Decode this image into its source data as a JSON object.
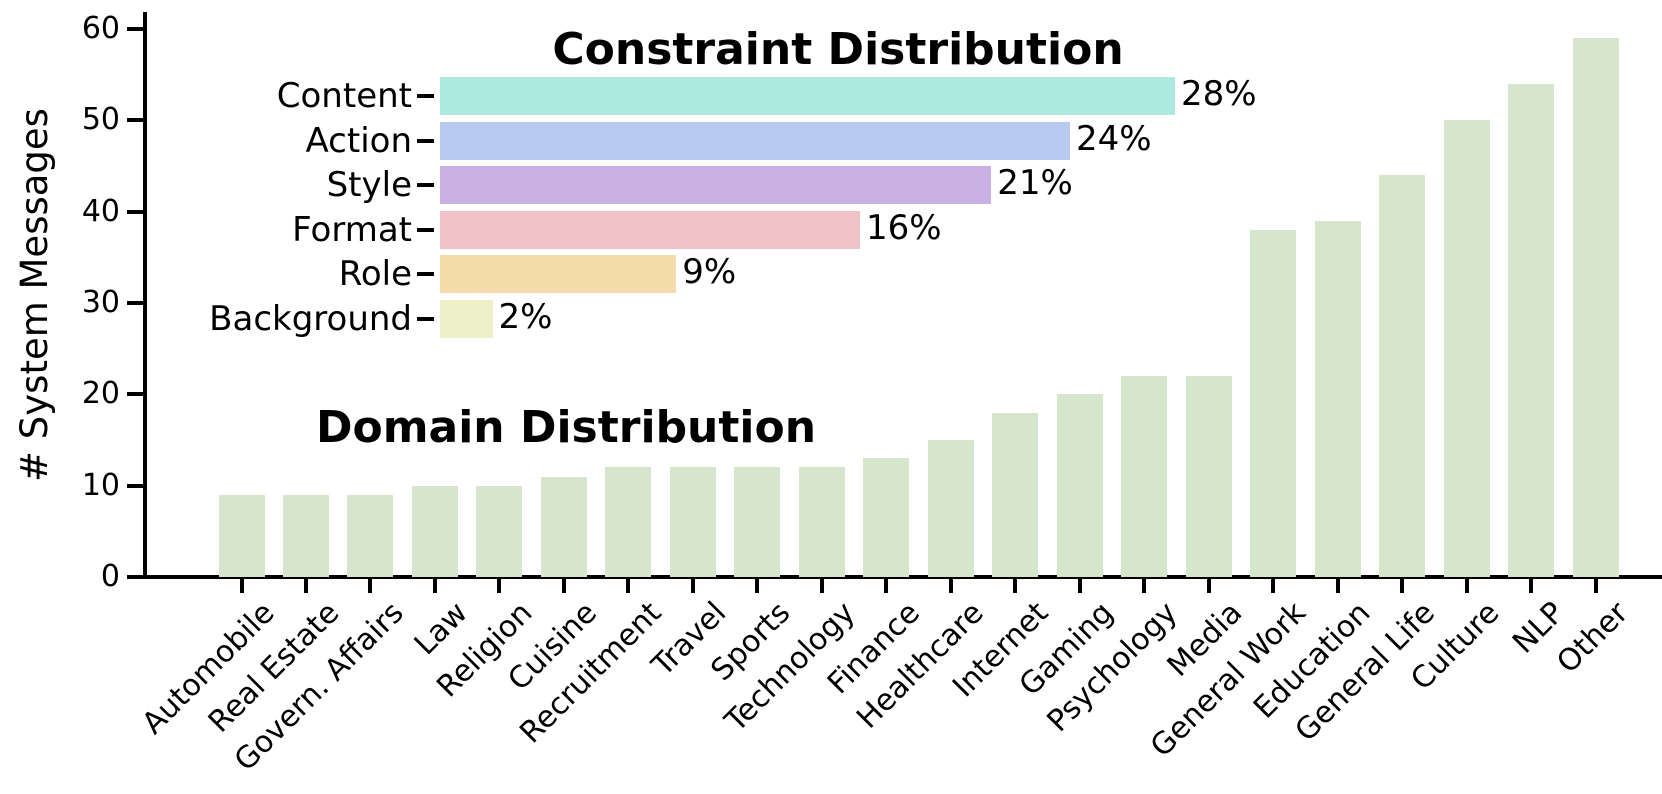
{
  "chart_data": [
    {
      "type": "bar",
      "title": "Domain Distribution",
      "xlabel": "",
      "ylabel": "# System Messages",
      "ylim": [
        0,
        60
      ],
      "yticks": [
        0,
        10,
        20,
        30,
        40,
        50,
        60
      ],
      "grid": false,
      "legend": "none",
      "bar_color": "#d6e6cd",
      "categories": [
        "Automobile",
        "Real Estate",
        "Govern. Affairs",
        "Law",
        "Religion",
        "Cuisine",
        "Recruitment",
        "Travel",
        "Sports",
        "Technology",
        "Finance",
        "Healthcare",
        "Internet",
        "Gaming",
        "Psychology",
        "Media",
        "General Work",
        "Education",
        "General Life",
        "Culture",
        "NLP",
        "Other"
      ],
      "values": [
        9,
        9,
        9,
        10,
        10,
        11,
        12,
        12,
        12,
        12,
        13,
        15,
        18,
        20,
        22,
        22,
        38,
        39,
        44,
        50,
        54,
        59
      ]
    },
    {
      "type": "bar",
      "orientation": "horizontal",
      "title": "Constraint Distribution",
      "xlim": [
        0,
        28
      ],
      "grid": false,
      "legend": "none",
      "categories": [
        "Content",
        "Action",
        "Style",
        "Format",
        "Role",
        "Background"
      ],
      "values": [
        28,
        24,
        21,
        16,
        9,
        2
      ],
      "value_labels": [
        "28%",
        "24%",
        "21%",
        "16%",
        "9%",
        "2%"
      ],
      "colors": [
        "#ade8e1",
        "#b8caf0",
        "#c9b1e3",
        "#f0c3c6",
        "#f4dcaa",
        "#eef0c7"
      ]
    }
  ]
}
